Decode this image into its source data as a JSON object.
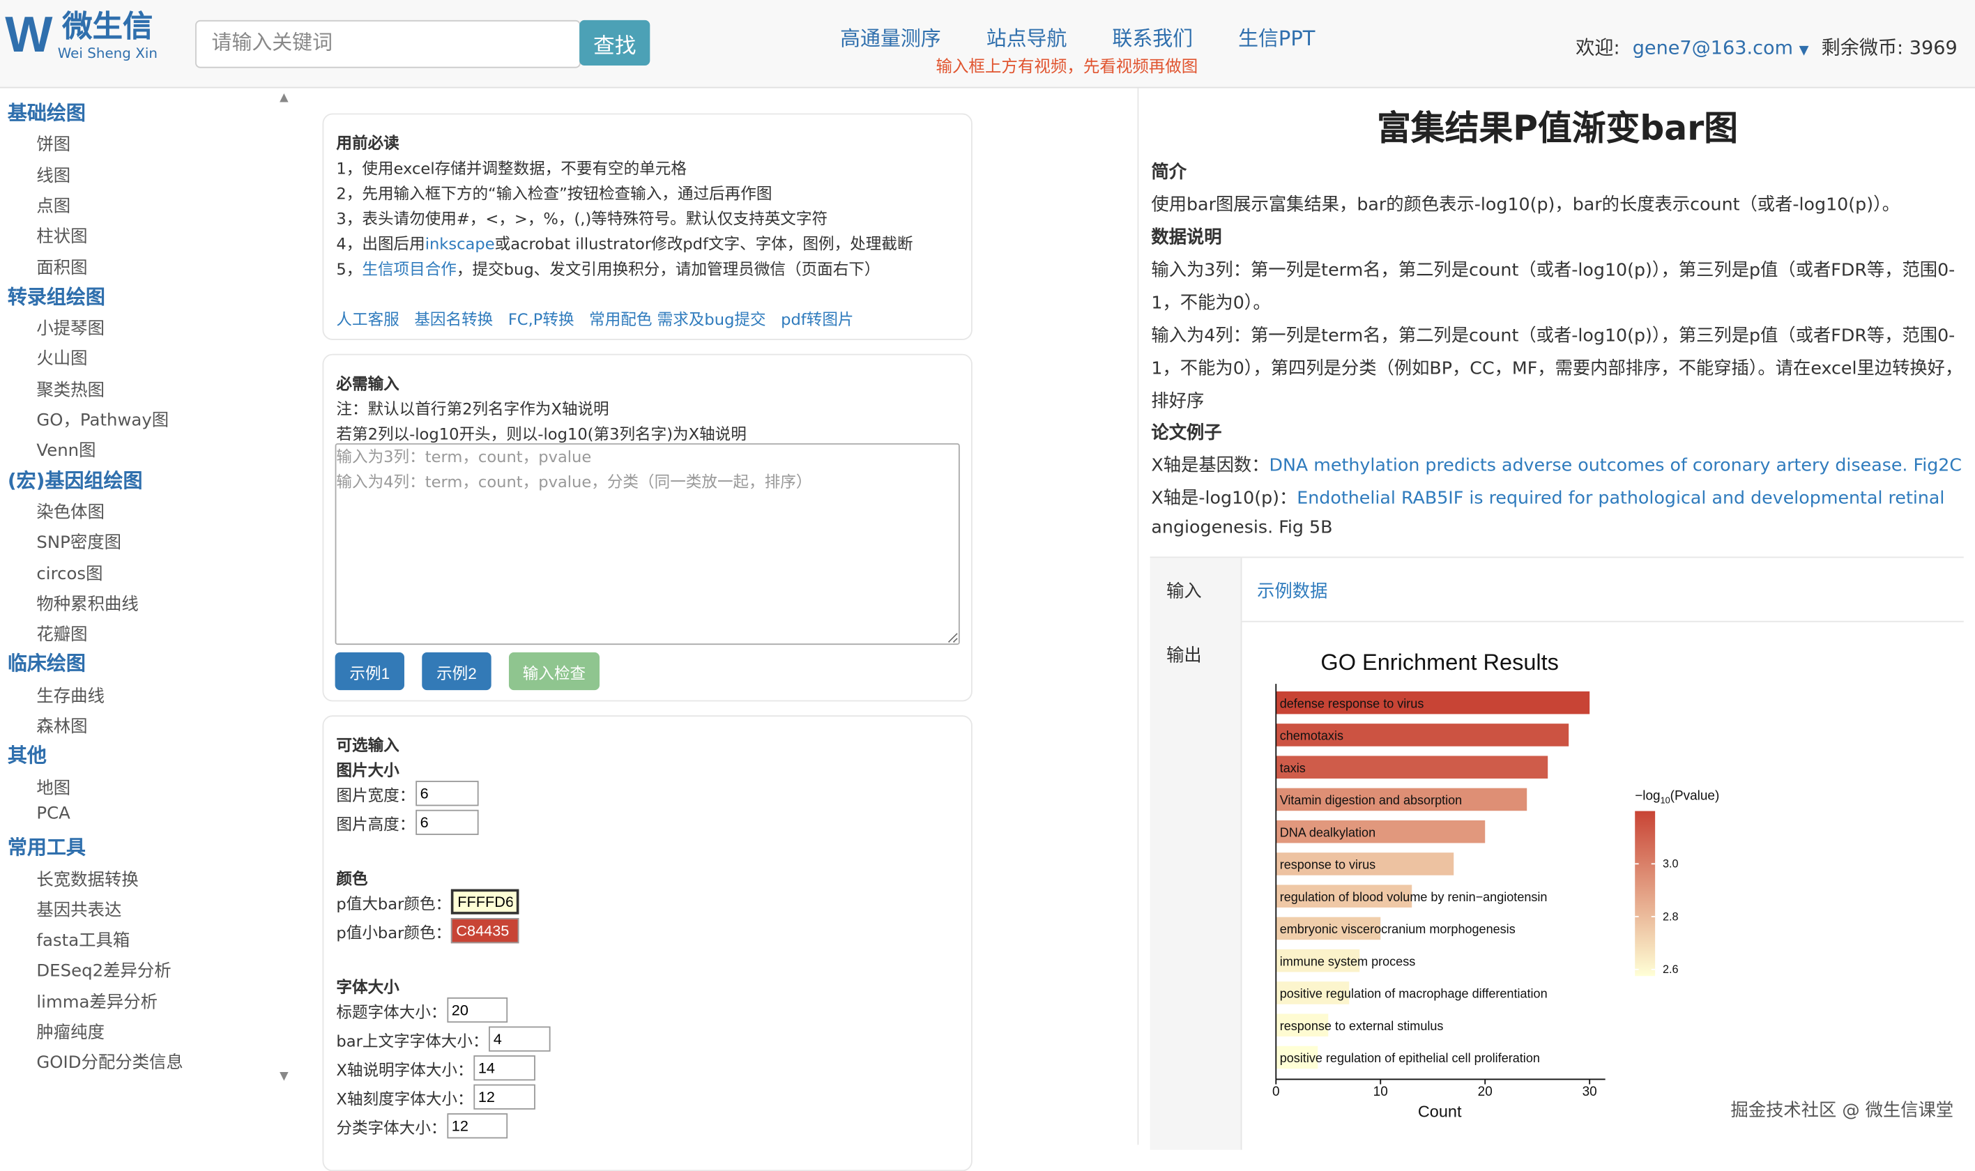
{
  "header": {
    "logo_letter": "W",
    "logo_cn": "微生信",
    "logo_en": "Wei Sheng Xin",
    "search_placeholder": "请输入关键词",
    "search_button": "查找",
    "nav": [
      "高通量测序",
      "站点导航",
      "联系我们",
      "生信PPT"
    ],
    "hint": "输入框上方有视频，先看视频再做图",
    "welcome": "欢迎:",
    "user": "gene7@163.com",
    "coins": "剩余微币: 3969"
  },
  "sidebar": [
    {
      "cat": "基础绘图",
      "items": [
        "饼图",
        "线图",
        "点图",
        "柱状图",
        "面积图"
      ]
    },
    {
      "cat": "转录组绘图",
      "items": [
        "小提琴图",
        "火山图",
        "聚类热图",
        "GO，Pathway图",
        "Venn图"
      ]
    },
    {
      "cat": "(宏)基因组绘图",
      "items": [
        "染色体图",
        "SNP密度图",
        "circos图",
        "物种累积曲线",
        "花瓣图"
      ]
    },
    {
      "cat": "临床绘图",
      "items": [
        "生存曲线",
        "森林图"
      ]
    },
    {
      "cat": "其他",
      "items": [
        "地图",
        "PCA"
      ]
    },
    {
      "cat": "常用工具",
      "items": [
        "长宽数据转换",
        "基因共表达",
        "fasta工具箱",
        "DESeq2差异分析",
        "limma差异分析",
        "肿瘤纯度",
        "GOID分配分类信息"
      ]
    }
  ],
  "notice": {
    "title": "用前必读",
    "l1": "1，使用excel存储并调整数据，不要有空的单元格",
    "l2": "2，先用输入框下方的“输入检查”按钮检查输入，通过后再作图",
    "l3": "3，表头请勿使用#，<，>，%，(,)等特殊符号。默认仅支持英文字符",
    "l4a": "4，出图后用",
    "l4link": "inkscape",
    "l4b": "或acrobat illustrator修改pdf文字、字体，图例，处理截断",
    "l5a": "5，",
    "l5link": "生信项目合作",
    "l5b": "，提交bug、发文引用换积分，请加管理员微信（页面右下）",
    "links": [
      "人工客服",
      "基因名转换",
      "FC,P转换",
      "常用配色",
      "需求及bug提交",
      "pdf转图片"
    ]
  },
  "required": {
    "title": "必需输入",
    "n1": "注：默认以首行第2列名字作为X轴说明",
    "n2": "若第2列以-log10开头，则以-log10(第3列名字)为X轴说明",
    "placeholder": "输入为3列：term，count，pvalue\n输入为4列：term，count，pvalue，分类（同一类放一起，排序）",
    "btn1": "示例1",
    "btn2": "示例2",
    "btn3": "输入检查"
  },
  "optional": {
    "title": "可选输入",
    "size_title": "图片大小",
    "width_label": "图片宽度：",
    "width": "6",
    "height_label": "图片高度：",
    "height": "6",
    "color_title": "颜色",
    "high_label": "p值大bar颜色：",
    "high": "FFFFD6",
    "low_label": "p值小bar颜色：",
    "low": "C84435",
    "font_title": "字体大小",
    "f1_label": "标题字体大小：",
    "f1": "20",
    "f2_label": "bar上文字字体大小：",
    "f2": "4",
    "f3_label": "X轴说明字体大小：",
    "f3": "14",
    "f4_label": "X轴刻度字体大小：",
    "f4": "12",
    "f5_label": "分类字体大小：",
    "f5": "12"
  },
  "right": {
    "title": "富集结果P值渐变bar图",
    "intro_h": "简介",
    "intro": "使用bar图展示富集结果，bar的颜色表示-log10(p)，bar的长度表示count（或者-log10(p)）。",
    "data_h": "数据说明",
    "d1a": "输入为3列：第一列是term名，第二列是count（或者-log10(p)），第三列是p值（或者FDR等，范围0-",
    "d1b": "1，不能为0）。",
    "d2a": "输入为4列：第一列是term名，第二列是count（或者-log10(p)），第三列是p值（或者FDR等，范围0-",
    "d2b": "1，不能为0），第四列是分类（例如BP，CC，MF，需要内部排序，不能穿插）。请在excel里边转换好，",
    "d2c": "排好序",
    "paper_h": "论文例子",
    "p1a": "X轴是基因数：",
    "p1link": "DNA methylation predicts adverse outcomes of coronary artery disease. Fig2C",
    "p2a": "X轴是-log10(p)：",
    "p2link": "Endothelial RAB5IF is required for pathological and developmental retinal",
    "p2link2": "angiogenesis. Fig 5B",
    "input_label": "输入",
    "input_link": "示例数据",
    "output_label": "输出"
  },
  "watermark": "掘金技术社区 @ 微生信课堂",
  "chart_data": {
    "type": "bar",
    "orientation": "horizontal",
    "title": "GO Enrichment Results",
    "xlabel": "Count",
    "xlim": [
      0,
      31
    ],
    "xticks": [
      0,
      10,
      20,
      30
    ],
    "categories": [
      "defense response to virus",
      "chemotaxis",
      "taxis",
      "Vitamin digestion and absorption",
      "DNA dealkylation",
      "response to virus",
      "regulation of blood volume by renin−angiotensin",
      "embryonic viscerocranium morphogenesis",
      "immune system process",
      "positive regulation of macrophage differentiation",
      "response to external stimulus",
      "positive regulation of epithelial cell proliferation"
    ],
    "values": [
      30,
      28,
      26,
      24,
      20,
      17,
      13,
      10,
      8,
      7,
      5,
      4
    ],
    "color_values": [
      3.2,
      3.15,
      3.12,
      2.95,
      2.92,
      2.78,
      2.76,
      2.74,
      2.62,
      2.61,
      2.59,
      2.57
    ],
    "legend": {
      "title_prefix": "−log",
      "title_sub": "10",
      "title_suffix": "(Pvalue)",
      "ticks": [
        3.0,
        2.8,
        2.6
      ],
      "range": [
        2.575,
        3.2
      ],
      "low_color": "#FFFFD6",
      "high_color": "#C84435",
      "placement": "right"
    },
    "grid": false
  }
}
